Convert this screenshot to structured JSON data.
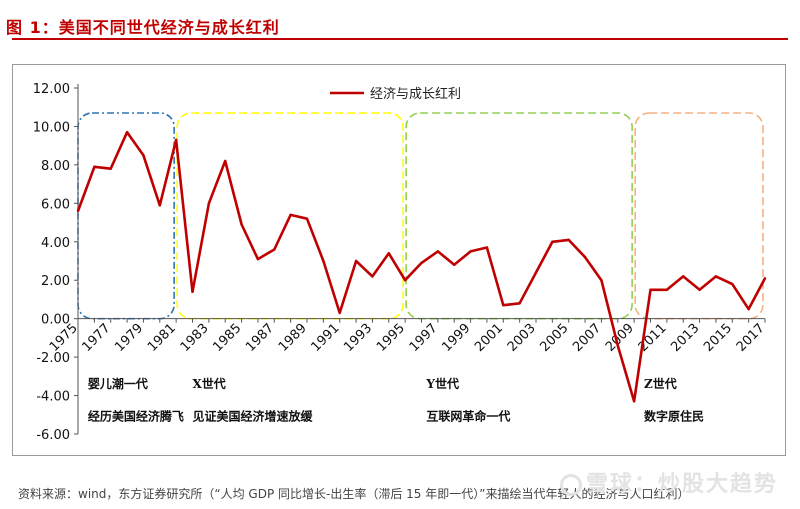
{
  "figure": {
    "title": "图 1：美国不同世代经济与成长红利",
    "source": "资料来源：wind，东方证券研究所（“人均 GDP 同比增长-出生率（滞后 15 年即一代）”来描绘当代年轻人的经济与人口红利）",
    "watermark": "雪球：炒股大趋势"
  },
  "colors": {
    "line": "#c00000",
    "title": "#c00000",
    "boomer_box": "#2e75b6",
    "x_box": "#ffff00",
    "y_box": "#92d050",
    "z_box": "#f4b183"
  },
  "chart_data": {
    "type": "line",
    "title": "",
    "xlabel": "",
    "ylabel": "",
    "ylim": [
      -6,
      12
    ],
    "yticks": [
      -6,
      -4,
      -2,
      0,
      2,
      4,
      6,
      8,
      10,
      12
    ],
    "ytick_labels": [
      "-6.00",
      "-4.00",
      "-2.00",
      "0.00",
      "2.00",
      "4.00",
      "6.00",
      "8.00",
      "10.00",
      "12.00"
    ],
    "x_tick_labels": [
      "1975",
      "1977",
      "1979",
      "1981",
      "1983",
      "1985",
      "1987",
      "1989",
      "1991",
      "1993",
      "1995",
      "1997",
      "1999",
      "2001",
      "2003",
      "2005",
      "2007",
      "2009",
      "2011",
      "2013",
      "2015",
      "2017"
    ],
    "legend": {
      "position": "top-center"
    },
    "series": [
      {
        "name": "经济与成长红利",
        "x": [
          1975,
          1976,
          1977,
          1978,
          1979,
          1980,
          1981,
          1982,
          1983,
          1984,
          1985,
          1986,
          1987,
          1988,
          1989,
          1990,
          1991,
          1992,
          1993,
          1994,
          1995,
          1996,
          1997,
          1998,
          1999,
          2000,
          2001,
          2002,
          2003,
          2004,
          2005,
          2006,
          2007,
          2008,
          2009,
          2010,
          2011,
          2012,
          2013,
          2014,
          2015,
          2016,
          2017
        ],
        "values": [
          5.6,
          7.9,
          7.8,
          9.7,
          8.5,
          5.9,
          9.3,
          1.4,
          6.0,
          8.2,
          4.9,
          3.1,
          3.6,
          5.4,
          5.2,
          3.0,
          0.3,
          3.0,
          2.2,
          3.4,
          2.0,
          2.9,
          3.5,
          2.8,
          3.5,
          3.7,
          0.7,
          0.8,
          2.4,
          4.0,
          4.1,
          3.2,
          2.0,
          -1.4,
          -4.3,
          1.5,
          1.5,
          2.2,
          1.5,
          2.2,
          1.8,
          0.5,
          2.1
        ]
      }
    ],
    "generations": [
      {
        "name": "婴儿潮一代",
        "desc": "经历美国经济腾飞",
        "start": 1975,
        "end": 1981
      },
      {
        "name": "X世代",
        "desc": "见证美国经济增速放缓",
        "start": 1981,
        "end": 1995
      },
      {
        "name": "Y世代",
        "desc": "互联网革命一代",
        "start": 1995,
        "end": 2009
      },
      {
        "name": "Z世代",
        "desc": "数字原住民",
        "start": 2009,
        "end": 2017
      }
    ]
  }
}
